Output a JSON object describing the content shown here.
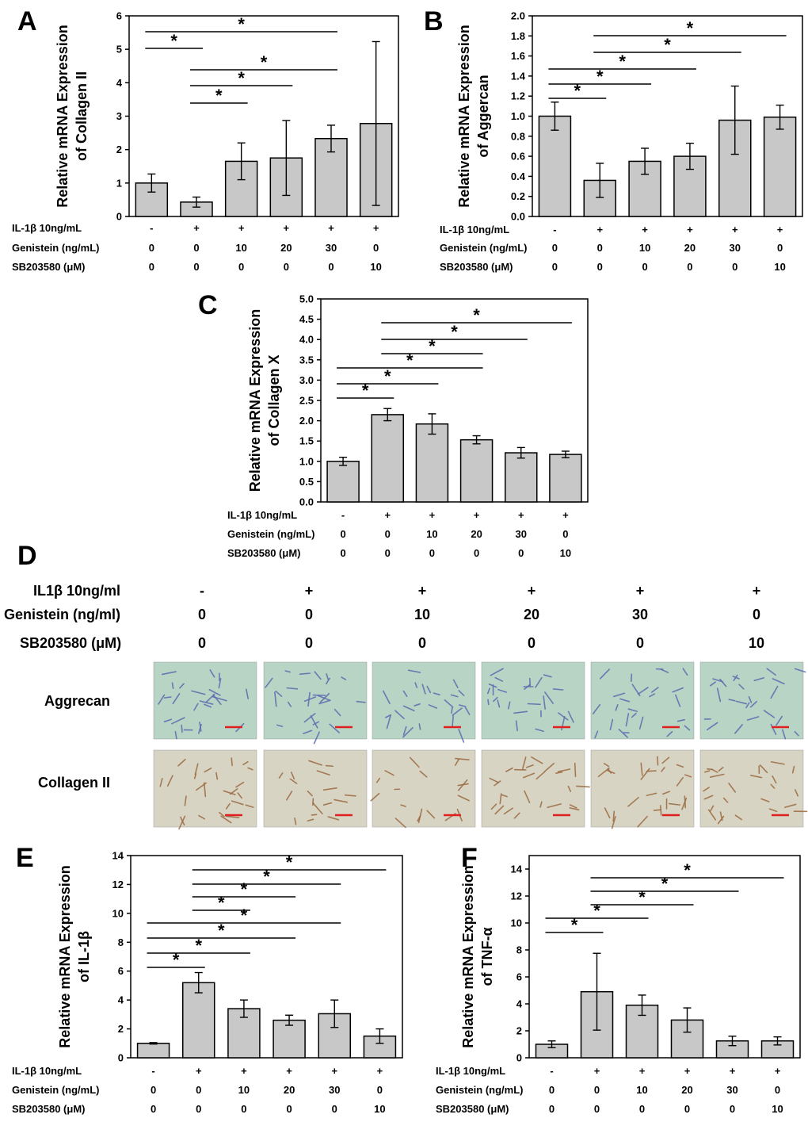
{
  "conditions": {
    "labels": [
      "IL-1β 10ng/mL",
      "Genistein (ng/mL)",
      "SB203580 (μM)"
    ],
    "il1b": [
      "-",
      "+",
      "+",
      "+",
      "+",
      "+"
    ],
    "genistein": [
      "0",
      "0",
      "10",
      "20",
      "30",
      "0"
    ],
    "sb": [
      "0",
      "0",
      "0",
      "0",
      "0",
      "10"
    ]
  },
  "chart_data": [
    {
      "id": "A",
      "type": "bar",
      "ylabel_lines": [
        "Relative mRNA Expression",
        "of Collagen II"
      ],
      "ylim": [
        0,
        6
      ],
      "yticks": [
        "0",
        "1",
        "2",
        "3",
        "4",
        "5",
        "6"
      ],
      "values": [
        1.0,
        0.43,
        1.65,
        1.75,
        2.33,
        2.78
      ],
      "errors": [
        0.27,
        0.15,
        0.55,
        1.12,
        0.4,
        2.45
      ],
      "significance": [
        [
          0,
          1
        ],
        [
          0,
          4
        ],
        [
          1,
          2
        ],
        [
          1,
          3
        ],
        [
          1,
          4
        ]
      ]
    },
    {
      "id": "B",
      "type": "bar",
      "ylabel_lines": [
        "Relative mRNA Expression",
        "of Aggercan"
      ],
      "ylim": [
        0,
        2.0
      ],
      "yticks": [
        "0.0",
        "0.2",
        "0.4",
        "0.6",
        "0.8",
        "1.0",
        "1.2",
        "1.4",
        "1.6",
        "1.8",
        "2.0"
      ],
      "values": [
        1.0,
        0.36,
        0.55,
        0.6,
        0.96,
        0.99
      ],
      "errors": [
        0.14,
        0.17,
        0.13,
        0.13,
        0.34,
        0.12
      ],
      "significance": [
        [
          0,
          1
        ],
        [
          0,
          2
        ],
        [
          0,
          3
        ],
        [
          1,
          4
        ],
        [
          1,
          5
        ]
      ]
    },
    {
      "id": "C",
      "type": "bar",
      "ylabel_lines": [
        "Relative mRNA Expression",
        "of Collagen X"
      ],
      "ylim": [
        0,
        5.0
      ],
      "yticks": [
        "0.0",
        "0.5",
        "1.0",
        "1.5",
        "2.0",
        "2.5",
        "3.0",
        "3.5",
        "4.0",
        "4.5",
        "5.0"
      ],
      "values": [
        1.0,
        2.15,
        1.92,
        1.53,
        1.21,
        1.17
      ],
      "errors": [
        0.1,
        0.15,
        0.25,
        0.1,
        0.13,
        0.08
      ],
      "significance": [
        [
          0,
          1
        ],
        [
          0,
          2
        ],
        [
          0,
          3
        ],
        [
          1,
          3
        ],
        [
          1,
          4
        ],
        [
          1,
          5
        ]
      ]
    },
    {
      "id": "E",
      "type": "bar",
      "ylabel_lines": [
        "Relative mRNA Expression",
        "of IL-1β"
      ],
      "ylim": [
        0,
        14
      ],
      "yticks": [
        "0",
        "2",
        "4",
        "6",
        "8",
        "10",
        "12",
        "14"
      ],
      "values": [
        1.0,
        5.2,
        3.4,
        2.6,
        3.05,
        1.5
      ],
      "errors": [
        0.05,
        0.7,
        0.6,
        0.35,
        0.95,
        0.5
      ],
      "significance": [
        [
          0,
          1
        ],
        [
          0,
          2
        ],
        [
          0,
          3
        ],
        [
          0,
          4
        ],
        [
          1,
          2
        ],
        [
          1,
          3
        ],
        [
          1,
          4
        ],
        [
          1,
          5
        ]
      ]
    },
    {
      "id": "F",
      "type": "bar",
      "ylabel_lines": [
        "Relative mRNA Expression",
        "of TNF-α"
      ],
      "ylim": [
        0,
        15
      ],
      "yticks": [
        "0",
        "2",
        "4",
        "6",
        "8",
        "10",
        "12",
        "14"
      ],
      "values": [
        1.0,
        4.9,
        3.9,
        2.8,
        1.25,
        1.25
      ],
      "errors": [
        0.25,
        2.85,
        0.75,
        0.9,
        0.35,
        0.3
      ],
      "significance": [
        [
          0,
          1
        ],
        [
          0,
          2
        ],
        [
          1,
          3
        ],
        [
          1,
          4
        ],
        [
          1,
          5
        ]
      ]
    }
  ],
  "panel_d": {
    "letter": "D",
    "row_labels": [
      "IL1β 10ng/ml",
      "Genistein (ng/ml)",
      "SB203580 (μM)"
    ],
    "il1b": [
      "-",
      "+",
      "+",
      "+",
      "+",
      "+"
    ],
    "genistein": [
      "0",
      "0",
      "10",
      "20",
      "30",
      "0"
    ],
    "sb": [
      "0",
      "0",
      "0",
      "0",
      "0",
      "10"
    ],
    "stain_labels": [
      "Aggrecan",
      "Collagen II"
    ],
    "colors": {
      "aggrecan_bg": "#b8d4c4",
      "collagen_bg": "#d8d4c4",
      "scale_bar": "#e02020"
    }
  },
  "panel_letters": [
    "A",
    "B",
    "C",
    "D",
    "E",
    "F"
  ],
  "significance_symbol": "*"
}
